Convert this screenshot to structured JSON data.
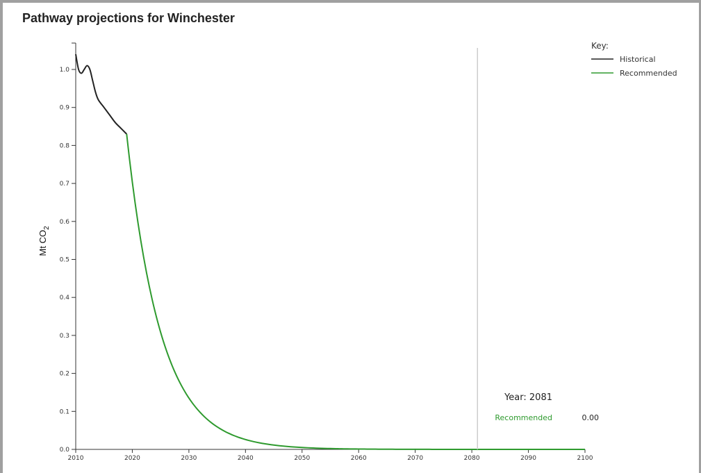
{
  "chart_data": {
    "type": "line",
    "title": "Pathway projections for Winchester",
    "ylabel_main": "Mt CO",
    "ylabel_sub": "2",
    "xlabel": "",
    "xlim": [
      2010,
      2100
    ],
    "ylim": [
      0,
      1.0
    ],
    "x_ticks": [
      "2010",
      "2020",
      "2030",
      "2040",
      "2050",
      "2060",
      "2070",
      "2080",
      "2090",
      "2100"
    ],
    "y_ticks": [
      "0.0",
      "0.1",
      "0.2",
      "0.3",
      "0.4",
      "0.5",
      "0.6",
      "0.7",
      "0.8",
      "0.9",
      "1.0"
    ],
    "grid": false,
    "legend": {
      "title": "Key:",
      "position": "top-right"
    },
    "series": [
      {
        "name": "Historical",
        "color": "#222222",
        "x": [
          2010,
          2010.5,
          2011,
          2011.5,
          2012,
          2012.5,
          2013,
          2013.5,
          2014,
          2015,
          2016,
          2017,
          2018,
          2019
        ],
        "y": [
          1.04,
          1.0,
          0.99,
          1.0,
          1.01,
          1.0,
          0.97,
          0.94,
          0.92,
          0.9,
          0.88,
          0.86,
          0.845,
          0.83
        ]
      },
      {
        "name": "Recommended",
        "color": "#2e9a2e",
        "model": "exponential",
        "start_x": 2019,
        "start_y": 0.83,
        "rate": 0.165,
        "end_x": 2100
      }
    ],
    "cursor": {
      "year": 2081,
      "year_label": "Year: 2081",
      "series_label": "Recommended",
      "value": "0.00"
    }
  }
}
